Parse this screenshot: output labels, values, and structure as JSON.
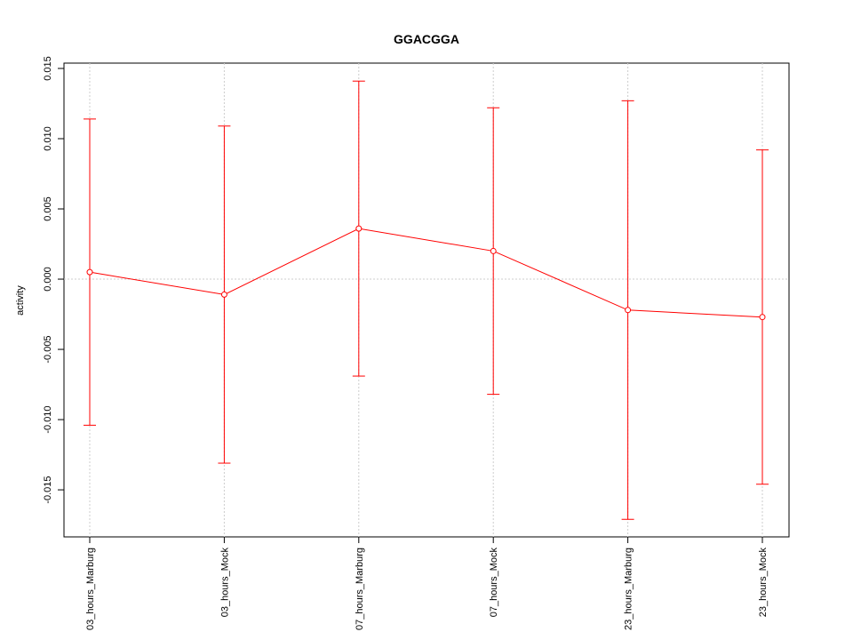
{
  "chart_data": {
    "type": "line",
    "title": "GGACGGA",
    "y_label": "activity",
    "categories": [
      "03_hours_Marburg",
      "03_hours_Mock",
      "07_hours_Marburg",
      "07_hours_Mock",
      "23_hours_Marburg",
      "23_hours_Mock"
    ],
    "series": [
      {
        "color": "#ff0000",
        "values": [
          0.0005,
          -0.0011,
          0.0036,
          0.002,
          -0.0022,
          -0.0027
        ],
        "errors": [
          0.0109,
          0.012,
          0.0105,
          0.0102,
          0.0149,
          0.0119
        ]
      }
    ],
    "ylim": [
      -0.01835,
      0.01538
    ],
    "yticks": [
      {
        "value": -0.015,
        "label": "-0.015"
      },
      {
        "value": -0.01,
        "label": "-0.010"
      },
      {
        "value": -0.005,
        "label": "-0.005"
      },
      {
        "value": 0,
        "label": "0.000"
      },
      {
        "value": 0.005,
        "label": "0.005"
      },
      {
        "value": 0.01,
        "label": "0.010"
      },
      {
        "value": 0.015,
        "label": "0.015"
      }
    ],
    "hline": 0,
    "grid": true
  }
}
